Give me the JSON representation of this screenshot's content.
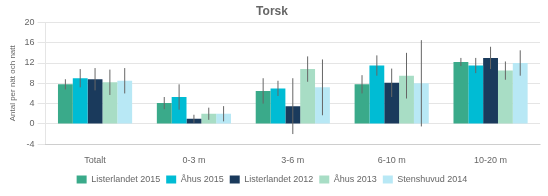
{
  "chart_data": {
    "type": "bar",
    "title": "Torsk",
    "ylabel": "Antal per nät och natt",
    "categories": [
      "Totalt",
      "0-3 m",
      "3-6 m",
      "6-10 m",
      "10-20 m"
    ],
    "series": [
      {
        "name": "Listerlandet 2015",
        "color": "#3aaa8a",
        "values": [
          7.8,
          4.1,
          6.5,
          7.8,
          12.2
        ],
        "errors": [
          1.0,
          1.2,
          2.5,
          1.8,
          0.8
        ]
      },
      {
        "name": "Åhus 2015",
        "color": "#00bcd4",
        "values": [
          9.0,
          5.3,
          7.0,
          11.5,
          11.5
        ],
        "errors": [
          1.8,
          2.5,
          1.5,
          2.0,
          1.5
        ]
      },
      {
        "name": "Listerlandet 2012",
        "color": "#1a3a5c",
        "values": [
          8.8,
          1.0,
          3.5,
          8.1,
          13.0
        ],
        "errors": [
          2.2,
          0.8,
          5.5,
          2.8,
          2.2
        ]
      },
      {
        "name": "Åhus 2013",
        "color": "#a8ddc5",
        "values": [
          8.2,
          2.0,
          10.8,
          9.5,
          10.5
        ],
        "errors": [
          2.5,
          1.2,
          2.5,
          4.5,
          1.8
        ]
      },
      {
        "name": "Stenshuvud 2014",
        "color": "#b8e8f5",
        "values": [
          8.5,
          2.0,
          7.2,
          8.0,
          12.0
        ],
        "errors": [
          2.5,
          1.5,
          5.5,
          8.5,
          2.5
        ]
      }
    ],
    "ylim": [
      -4,
      20
    ],
    "yticks": [
      -4,
      0,
      4,
      8,
      12,
      16,
      20
    ],
    "grid": true,
    "legend": "bottom"
  }
}
